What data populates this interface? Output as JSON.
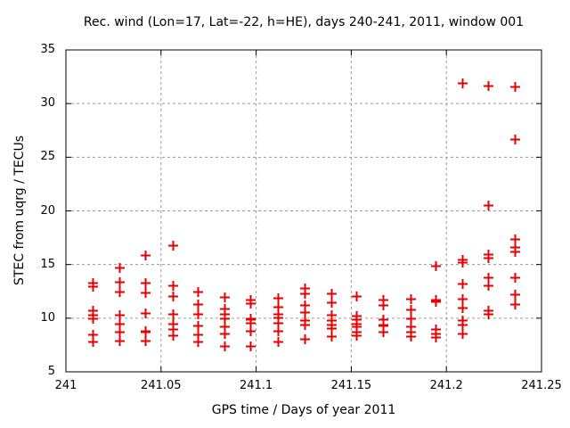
{
  "window": {
    "background": "#ffffff"
  },
  "colors": {
    "marker": "#e60000",
    "grid": "#9a9a9a",
    "axis": "#000000",
    "text": "#000000",
    "background": "#ffffff"
  },
  "chart_data": {
    "type": "scatter",
    "title": "Rec. wind (Lon=17, Lat=-22, h=HE), days 240-241, 2011, window 001",
    "xlabel": "GPS time / Days of year 2011",
    "ylabel": "STEC from uqrg / TECUs",
    "xlim": [
      241,
      241.25
    ],
    "ylim": [
      5,
      35
    ],
    "xticks": {
      "values": [
        241,
        241.05,
        241.1,
        241.15,
        241.2,
        241.25
      ],
      "labels": [
        "241",
        "241.05",
        "241.1",
        "241.15",
        "241.2",
        "241.25"
      ]
    },
    "yticks": {
      "values": [
        5,
        10,
        15,
        20,
        25,
        30,
        35
      ],
      "labels": [
        "5",
        "10",
        "15",
        "20",
        "25",
        "30",
        "35"
      ]
    },
    "grid": true,
    "grid_style": "dashed",
    "legend": "none",
    "marker": {
      "shape": "plus",
      "size": 11,
      "stroke_width": 2
    },
    "series": [
      {
        "name": "STEC observations",
        "points": [
          [
            241.0142,
            13.3
          ],
          [
            241.0142,
            13.0
          ],
          [
            241.0142,
            10.7
          ],
          [
            241.0142,
            10.3
          ],
          [
            241.0142,
            10.0
          ],
          [
            241.0142,
            8.5
          ],
          [
            241.0142,
            7.8
          ],
          [
            241.0282,
            14.7
          ],
          [
            241.0282,
            13.4
          ],
          [
            241.0282,
            12.5
          ],
          [
            241.0282,
            10.3
          ],
          [
            241.0282,
            9.5
          ],
          [
            241.0282,
            8.7
          ],
          [
            241.0282,
            7.9
          ],
          [
            241.0417,
            15.9
          ],
          [
            241.0417,
            13.3
          ],
          [
            241.0417,
            12.4
          ],
          [
            241.0417,
            10.5
          ],
          [
            241.0417,
            8.8
          ],
          [
            241.0417,
            8.7
          ],
          [
            241.0417,
            7.9
          ],
          [
            241.0562,
            16.8
          ],
          [
            241.0562,
            13.1
          ],
          [
            241.0562,
            12.1
          ],
          [
            241.0562,
            10.4
          ],
          [
            241.0562,
            9.5
          ],
          [
            241.0562,
            9.0
          ],
          [
            241.0562,
            8.4
          ],
          [
            241.0693,
            12.5
          ],
          [
            241.0693,
            11.3
          ],
          [
            241.0693,
            10.4
          ],
          [
            241.0693,
            9.3
          ],
          [
            241.0693,
            8.5
          ],
          [
            241.0693,
            7.8
          ],
          [
            241.0832,
            12.0
          ],
          [
            241.0832,
            10.9
          ],
          [
            241.0832,
            10.4
          ],
          [
            241.0832,
            10.0
          ],
          [
            241.0832,
            9.2
          ],
          [
            241.0832,
            8.6
          ],
          [
            241.0832,
            7.4
          ],
          [
            241.0967,
            11.7
          ],
          [
            241.0967,
            11.4
          ],
          [
            241.0967,
            10.0
          ],
          [
            241.0967,
            9.9
          ],
          [
            241.0967,
            9.6
          ],
          [
            241.0967,
            8.8
          ],
          [
            241.0967,
            7.4
          ],
          [
            241.1115,
            11.9
          ],
          [
            241.1115,
            11.1
          ],
          [
            241.1115,
            10.4
          ],
          [
            241.1115,
            10.1
          ],
          [
            241.1115,
            9.6
          ],
          [
            241.1115,
            8.8
          ],
          [
            241.1115,
            7.8
          ],
          [
            241.1253,
            12.8
          ],
          [
            241.1253,
            12.3
          ],
          [
            241.1253,
            11.2
          ],
          [
            241.1253,
            10.6
          ],
          [
            241.1253,
            9.8
          ],
          [
            241.1253,
            9.4
          ],
          [
            241.1253,
            8.1
          ],
          [
            241.1393,
            12.3
          ],
          [
            241.1393,
            11.5
          ],
          [
            241.1393,
            10.3
          ],
          [
            241.1393,
            9.8
          ],
          [
            241.1393,
            9.4
          ],
          [
            241.1393,
            9.1
          ],
          [
            241.1393,
            8.3
          ],
          [
            241.1528,
            12.1
          ],
          [
            241.1528,
            10.2
          ],
          [
            241.1528,
            9.9
          ],
          [
            241.1528,
            9.5
          ],
          [
            241.1528,
            9.2
          ],
          [
            241.1528,
            8.7
          ],
          [
            241.1528,
            8.4
          ],
          [
            241.1668,
            11.7
          ],
          [
            241.1668,
            11.2
          ],
          [
            241.1668,
            9.9
          ],
          [
            241.1668,
            9.4
          ],
          [
            241.1668,
            9.3
          ],
          [
            241.1668,
            8.7
          ],
          [
            241.1812,
            11.8
          ],
          [
            241.1812,
            10.8
          ],
          [
            241.1812,
            10.0
          ],
          [
            241.1812,
            9.2
          ],
          [
            241.1812,
            8.7
          ],
          [
            241.1812,
            8.3
          ],
          [
            241.1941,
            14.9
          ],
          [
            241.1941,
            11.7
          ],
          [
            241.1941,
            11.6
          ],
          [
            241.1941,
            9.0
          ],
          [
            241.1941,
            8.6
          ],
          [
            241.1941,
            8.2
          ],
          [
            241.2081,
            31.9
          ],
          [
            241.2081,
            15.5
          ],
          [
            241.2081,
            15.2
          ],
          [
            241.2081,
            13.2
          ],
          [
            241.2081,
            11.8
          ],
          [
            241.2081,
            11.0
          ],
          [
            241.2081,
            9.8
          ],
          [
            241.2081,
            9.4
          ],
          [
            241.2081,
            8.6
          ],
          [
            241.2221,
            31.7
          ],
          [
            241.2221,
            20.5
          ],
          [
            241.2221,
            16.0
          ],
          [
            241.2221,
            15.6
          ],
          [
            241.2221,
            13.8
          ],
          [
            241.2221,
            13.1
          ],
          [
            241.2221,
            10.7
          ],
          [
            241.2221,
            10.4
          ],
          [
            241.2361,
            31.6
          ],
          [
            241.2361,
            26.7
          ],
          [
            241.2361,
            17.4
          ],
          [
            241.2361,
            16.6
          ],
          [
            241.2361,
            16.2
          ],
          [
            241.2361,
            13.8
          ],
          [
            241.2361,
            12.2
          ],
          [
            241.2361,
            11.3
          ]
        ]
      }
    ]
  }
}
